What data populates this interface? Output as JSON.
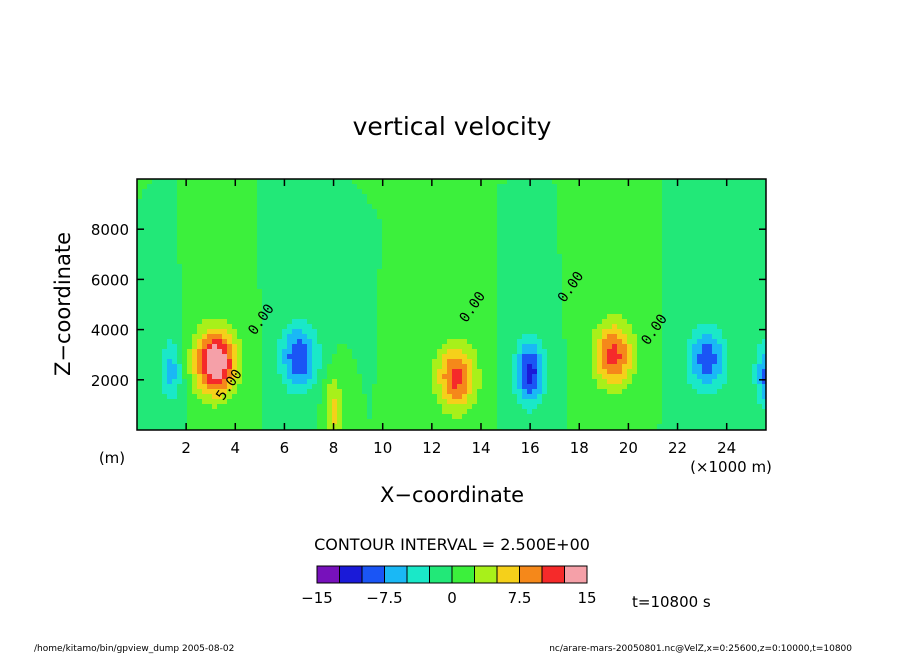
{
  "chart_data": {
    "type": "contour",
    "title": "vertical velocity",
    "xlabel": "X−coordinate",
    "ylabel": "Z−coordinate",
    "x_unit_note": "(×1000 m)",
    "y_unit_note": "(m)",
    "xlim": [
      0,
      25.6
    ],
    "ylim": [
      0,
      10000
    ],
    "xticks": [
      2,
      4,
      6,
      8,
      10,
      12,
      14,
      16,
      18,
      20,
      22,
      24
    ],
    "xtick_labels": [
      "2",
      "4",
      "6",
      "8",
      "10",
      "12",
      "14",
      "16",
      "18",
      "20",
      "22",
      "24"
    ],
    "yticks": [
      2000,
      4000,
      6000,
      8000
    ],
    "ytick_labels": [
      "2000",
      "4000",
      "6000",
      "8000"
    ],
    "contour_interval_text": "CONTOUR INTERVAL = 2.500E+00",
    "contour_labels": [
      {
        "text": "0.00",
        "x": 5.2,
        "y": 4300
      },
      {
        "text": "0.00",
        "x": 13.8,
        "y": 4800
      },
      {
        "text": "0.00",
        "x": 17.8,
        "y": 5600
      },
      {
        "text": "0.00",
        "x": 21.2,
        "y": 3900
      },
      {
        "text": "5.00",
        "x": 3.9,
        "y": 1700
      }
    ],
    "cells": [
      {
        "x": 3.2,
        "y": 2700,
        "w": 0.85,
        "v": 16
      },
      {
        "x": 1.4,
        "y": 2400,
        "w": 0.45,
        "v": -6
      },
      {
        "x": 6.6,
        "y": 2900,
        "w": 0.75,
        "v": -10
      },
      {
        "x": 8.0,
        "y": 800,
        "w": 0.35,
        "v": 6
      },
      {
        "x": 13.0,
        "y": 2100,
        "w": 0.8,
        "v": 11
      },
      {
        "x": 16.0,
        "y": 2300,
        "w": 0.6,
        "v": -11
      },
      {
        "x": 19.4,
        "y": 3000,
        "w": 0.8,
        "v": 11
      },
      {
        "x": 23.2,
        "y": 2800,
        "w": 0.8,
        "v": -9
      },
      {
        "x": 25.6,
        "y": 2200,
        "w": 0.45,
        "v": -8
      }
    ],
    "colorbar": {
      "colors": [
        "#7711bb",
        "#1a1ad8",
        "#1a55f5",
        "#1ab8f5",
        "#1ae8c8",
        "#22e878",
        "#3cf03c",
        "#a8f01a",
        "#f5d01a",
        "#f5881a",
        "#f52a2a",
        "#f5a0a8"
      ],
      "tick_labels": [
        "−15",
        "−7.5",
        "0",
        "7.5",
        "15"
      ]
    },
    "time_text": "t=10800 s"
  },
  "footer": {
    "left": "/home/kitamo/bin/gpview_dump  2005-08-02",
    "right": "nc/arare-mars-20050801.nc@VelZ,x=0:25600,z=0:10000,t=10800"
  }
}
